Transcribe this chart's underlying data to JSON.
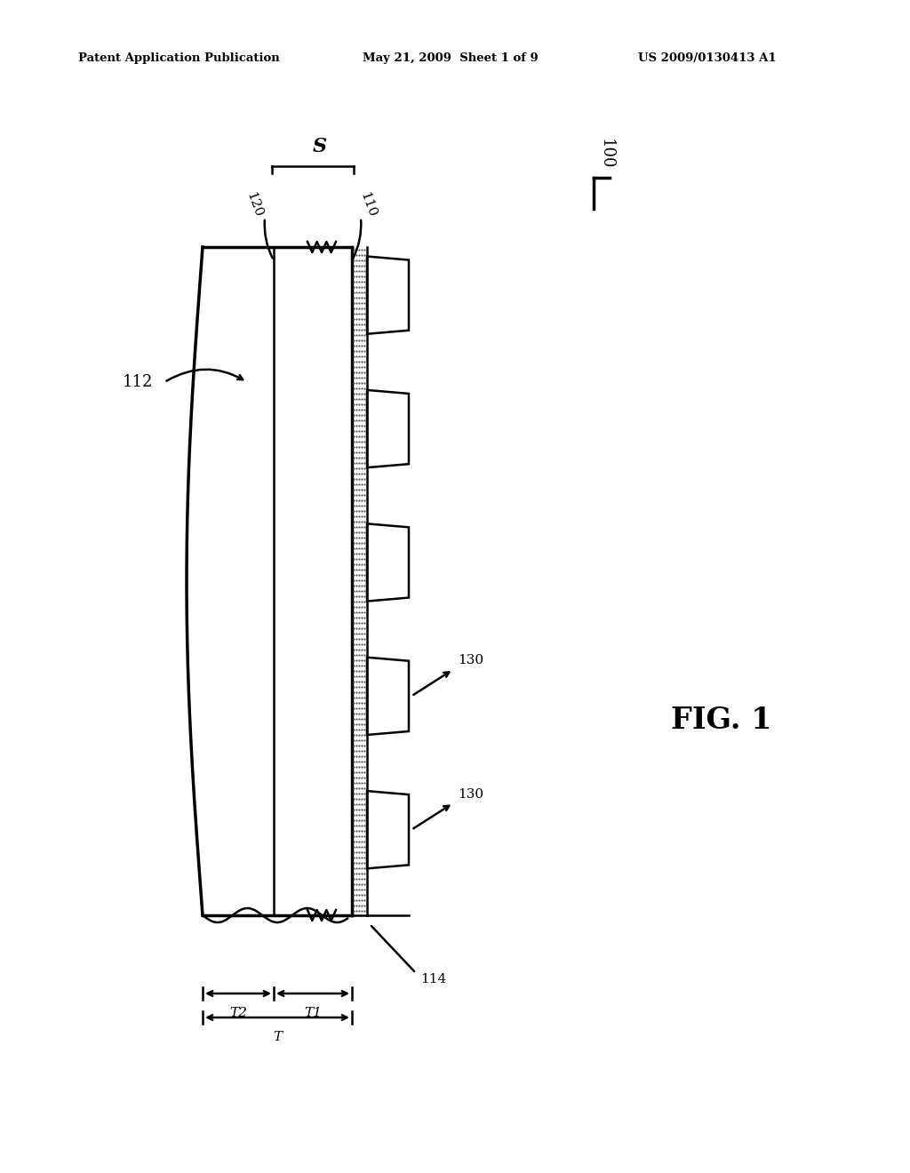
{
  "bg_color": "#ffffff",
  "header_left": "Patent Application Publication",
  "header_mid": "May 21, 2009  Sheet 1 of 9",
  "header_right": "US 2009/0130413 A1",
  "fig_label": "FIG. 1",
  "ref_100": "100",
  "ref_110": "110",
  "ref_112": "112",
  "ref_114": "114",
  "ref_120": "120",
  "ref_130": "130",
  "label_S": "S",
  "label_T": "T",
  "label_T1": "T1",
  "label_T2": "T2",
  "line_color": "#000000"
}
